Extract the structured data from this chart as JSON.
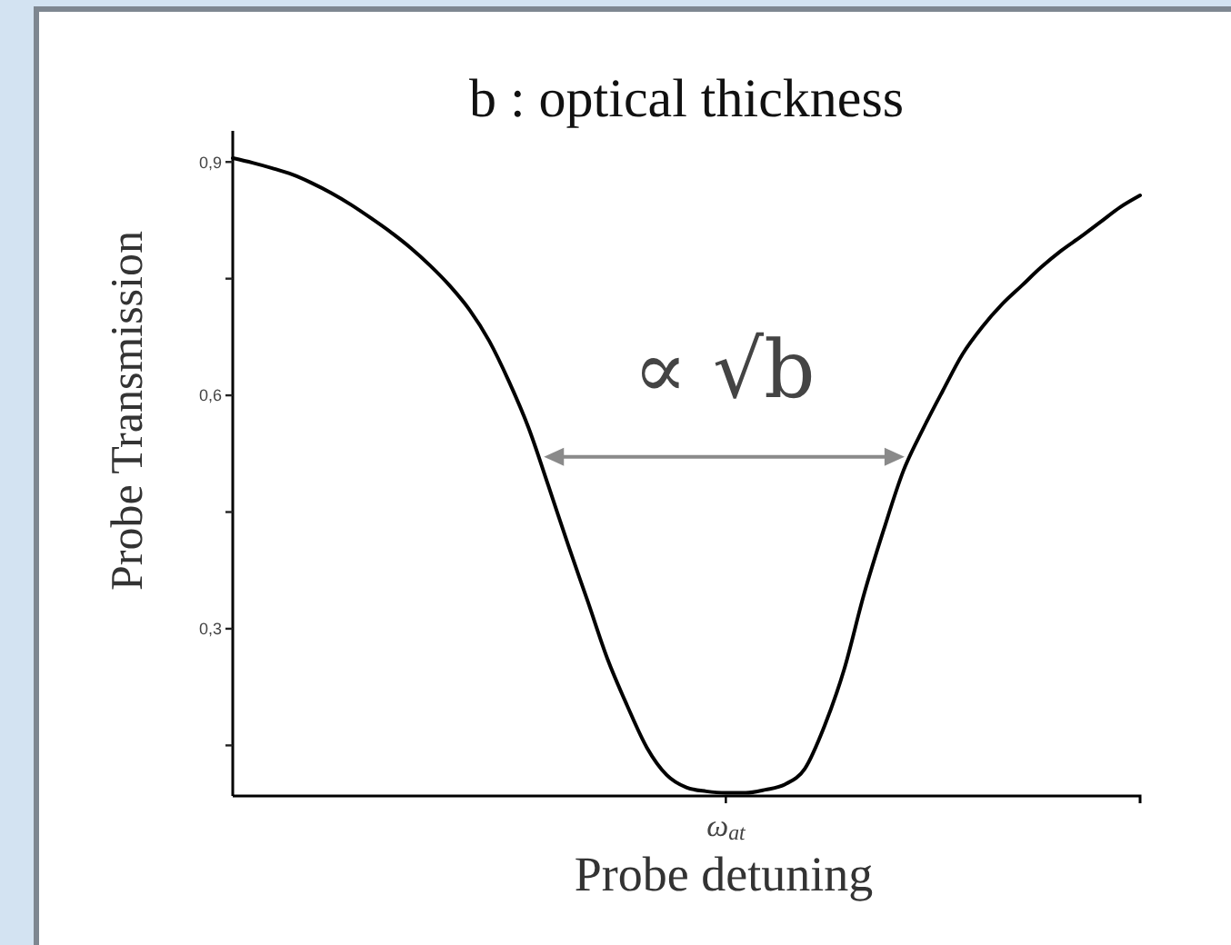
{
  "chart_data": {
    "type": "line",
    "title": "b : optical thickness",
    "xlabel": "Probe detuning",
    "ylabel": "Probe Transmission",
    "annotations": [
      "∝ √b"
    ],
    "categories": [
      null,
      null,
      null,
      null,
      null,
      null,
      null,
      null,
      null,
      null,
      null,
      null,
      null,
      null,
      null,
      null,
      null,
      null,
      null,
      null,
      null,
      null,
      null,
      null,
      null,
      "ω$_{at}$",
      null,
      null,
      null,
      null,
      null,
      null,
      null,
      null,
      null,
      null,
      null,
      null,
      null,
      null,
      null,
      null,
      null,
      null,
      null,
      null,
      null
    ],
    "series": [
      {
        "color": "#000000",
        "values": [
          0.905,
          0.899,
          0.892,
          0.884,
          0.873,
          0.86,
          0.845,
          0.828,
          0.81,
          0.79,
          0.767,
          0.741,
          0.71,
          0.67,
          0.618,
          0.558,
          0.484,
          0.408,
          0.335,
          0.261,
          0.201,
          0.147,
          0.112,
          0.096,
          0.091,
          0.089,
          0.089,
          0.093,
          0.1,
          0.12,
          0.175,
          0.248,
          0.344,
          0.427,
          0.503,
          0.557,
          0.606,
          0.653,
          0.688,
          0.717,
          0.741,
          0.765,
          0.786,
          0.804,
          0.823,
          0.842,
          0.857
        ]
      }
    ],
    "ylim": [
      0.085,
      0.94
    ],
    "yticks": [
      {
        "value": 0.15,
        "label": null
      },
      {
        "value": 0.3,
        "label": "0,3"
      },
      {
        "value": 0.45,
        "label": null
      },
      {
        "value": 0.6,
        "label": "0,6"
      },
      {
        "value": 0.75,
        "label": null
      },
      {
        "value": 0.9,
        "label": "0,9"
      }
    ],
    "line_style": "solid"
  }
}
